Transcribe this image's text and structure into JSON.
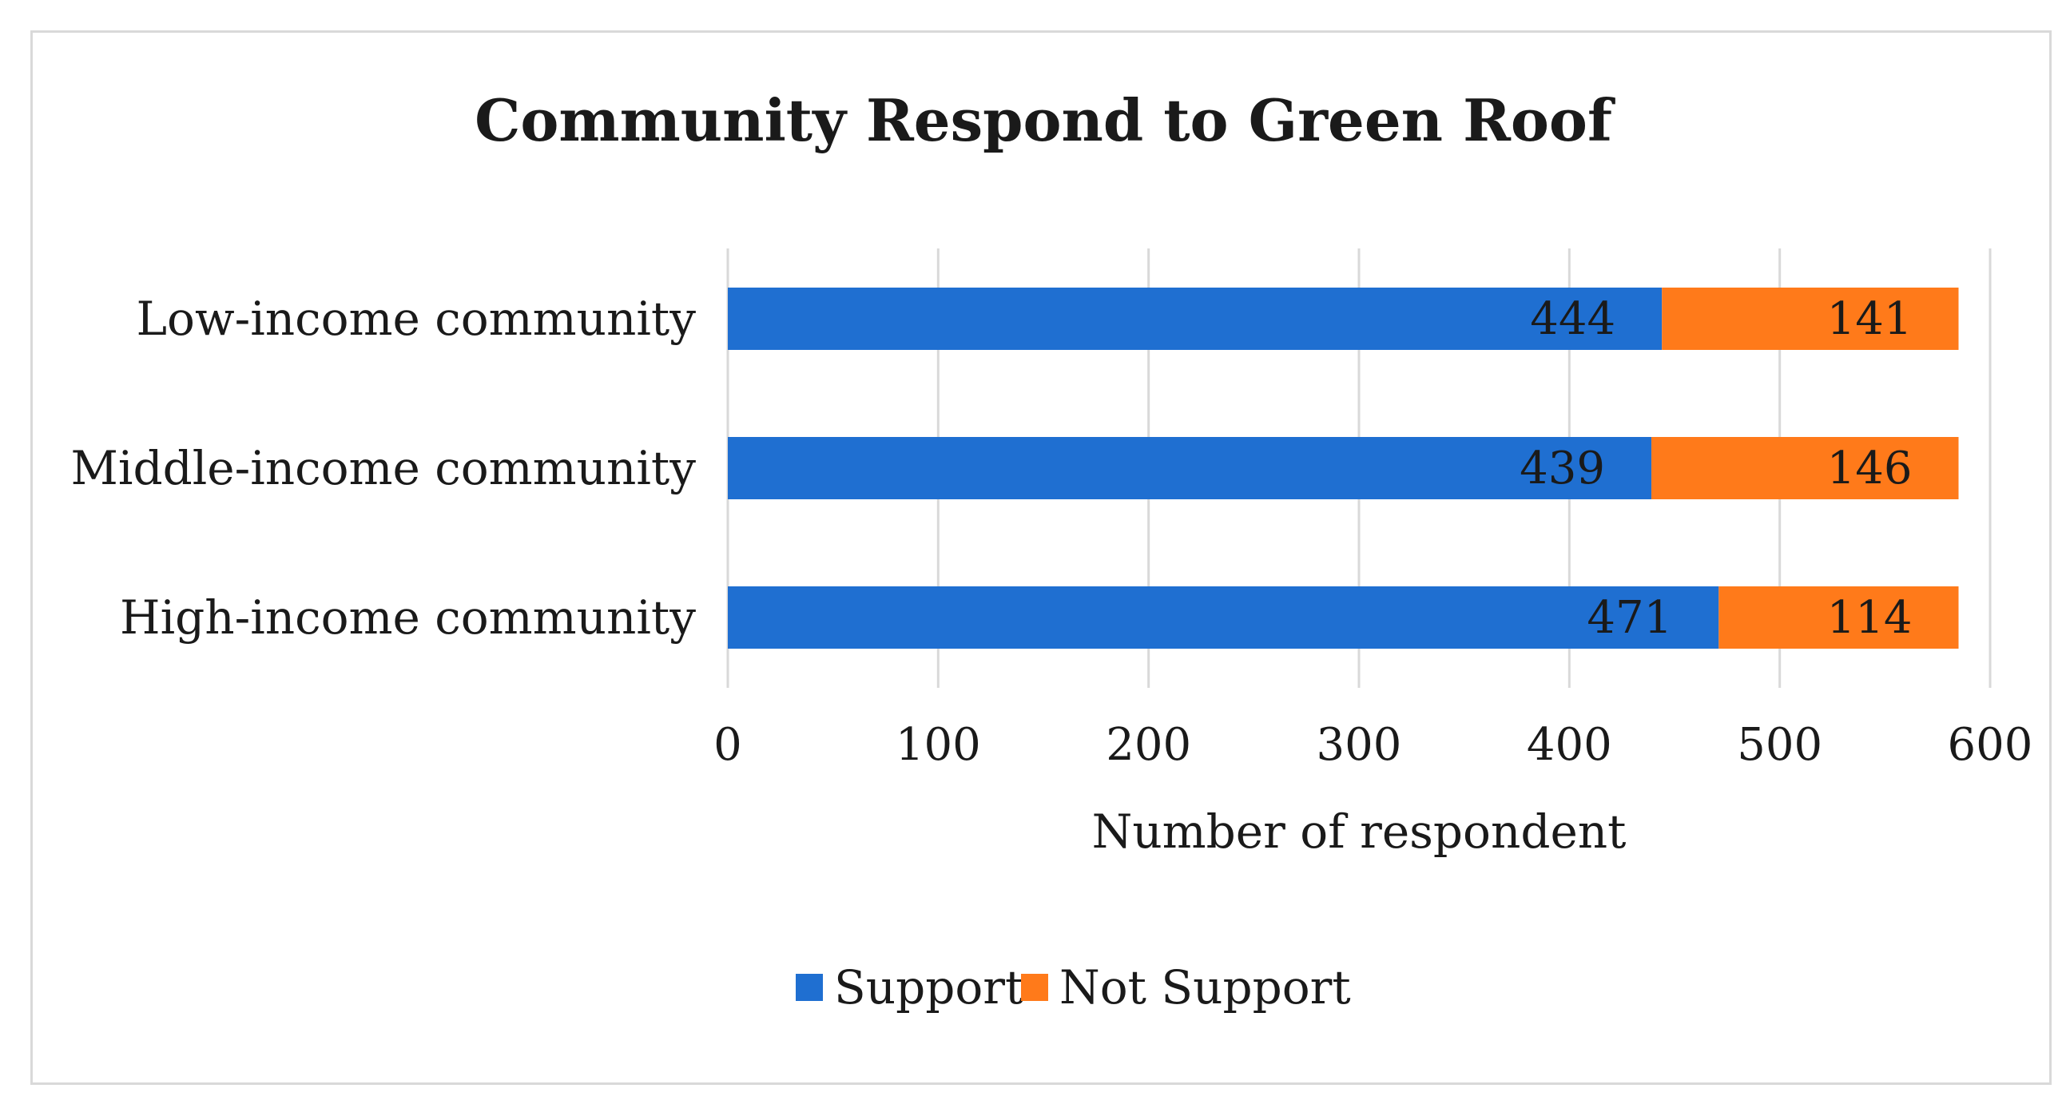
{
  "chart_data": {
    "type": "bar",
    "orientation": "horizontal",
    "stacked": true,
    "title": "Community Respond to Green Roof",
    "xlabel": "Number of respondent",
    "ylabel": "",
    "xlim": [
      0,
      600
    ],
    "x_ticks": [
      0,
      100,
      200,
      300,
      400,
      500,
      600
    ],
    "categories": [
      "Low-income community",
      "Middle-income community",
      "High-income community"
    ],
    "series": [
      {
        "name": "Support",
        "color": "#1f6fd1",
        "values": [
          444,
          439,
          471
        ]
      },
      {
        "name": "Not Support",
        "color": "#ff7a1a",
        "values": [
          141,
          146,
          114
        ]
      }
    ],
    "data_labels": true,
    "grid": "vertical",
    "legend_position": "bottom"
  }
}
